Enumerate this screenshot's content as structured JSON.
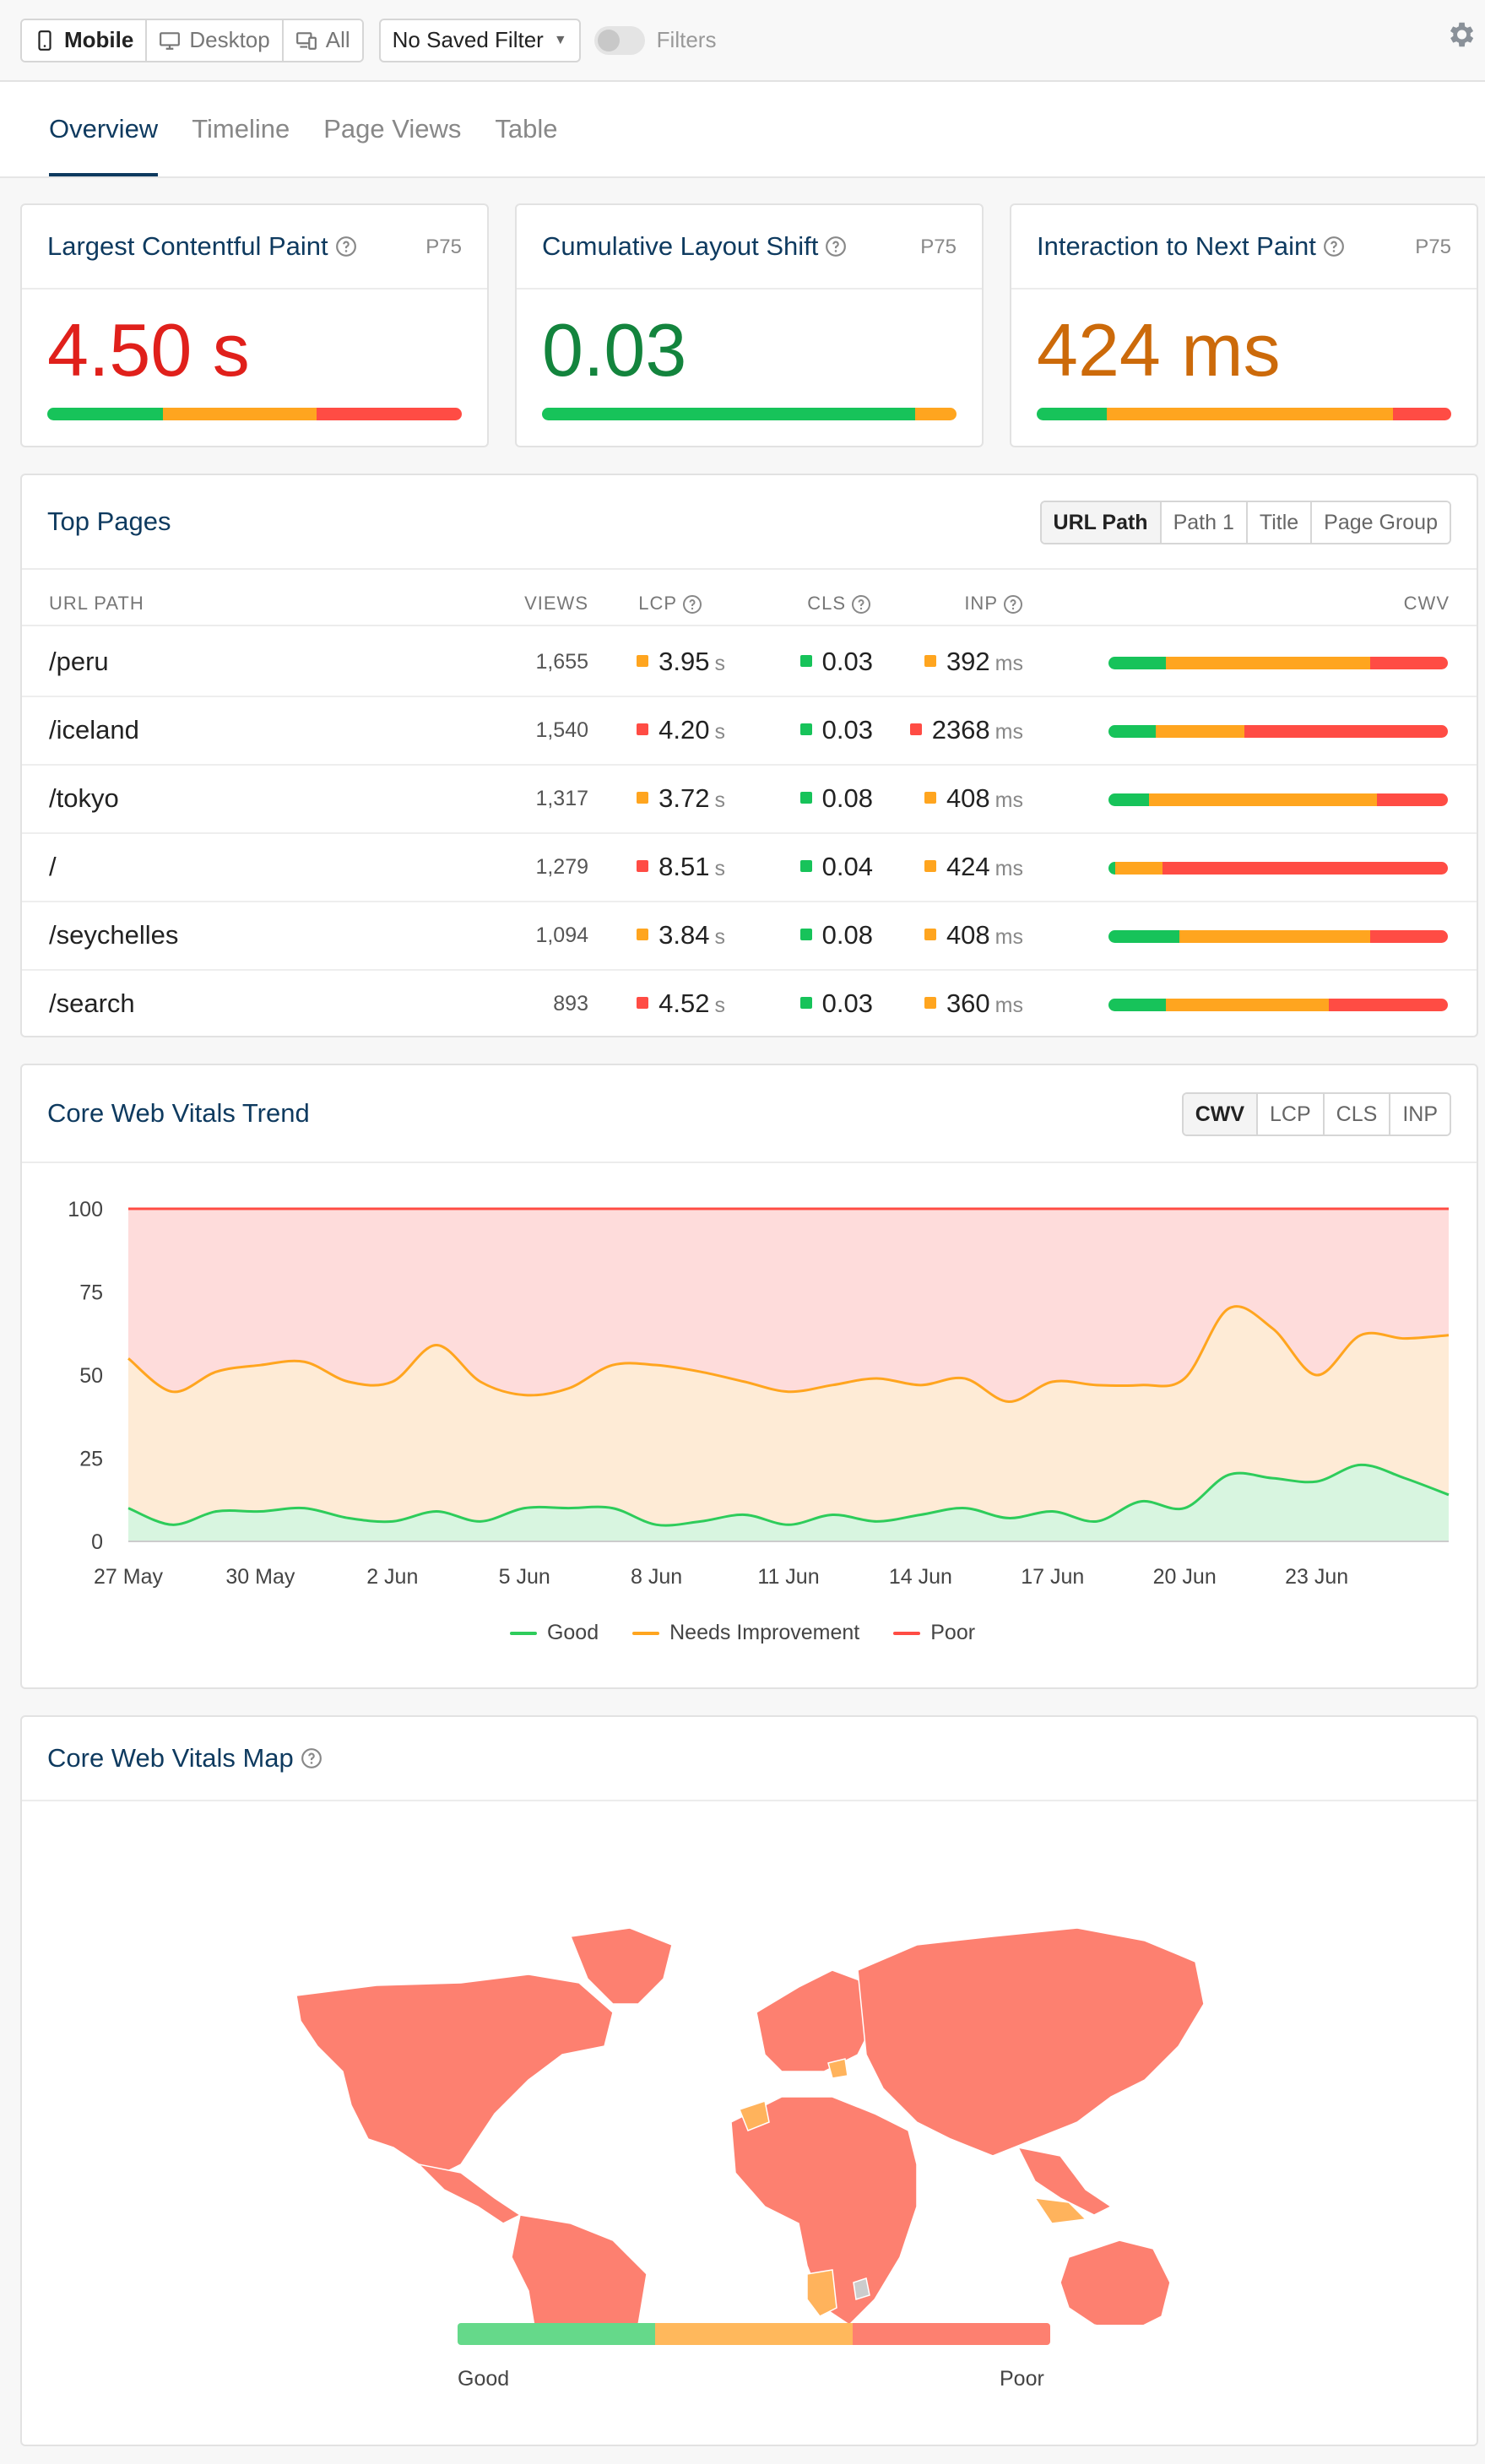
{
  "topbar": {
    "devices": [
      {
        "label": "Mobile",
        "active": true
      },
      {
        "label": "Desktop",
        "active": false
      },
      {
        "label": "All",
        "active": false
      }
    ],
    "saved_filter": "No Saved Filter",
    "filters_label": "Filters"
  },
  "tabs": [
    {
      "label": "Overview",
      "active": true
    },
    {
      "label": "Timeline",
      "active": false
    },
    {
      "label": "Page Views",
      "active": false
    },
    {
      "label": "Table",
      "active": false
    }
  ],
  "colors": {
    "good": "#17c35a",
    "ni": "#ffa51f",
    "poor": "#ff4c44",
    "title": "#0e3a5f"
  },
  "metrics": [
    {
      "title": "Largest Contentful Paint",
      "percentile": "P75",
      "value": "4.50 s",
      "value_color": "#e0201b",
      "dist": [
        0.28,
        0.37,
        0.35
      ]
    },
    {
      "title": "Cumulative Layout Shift",
      "percentile": "P75",
      "value": "0.03",
      "value_color": "#13843d",
      "dist": [
        0.9,
        0.1,
        0.0
      ]
    },
    {
      "title": "Interaction to Next Paint",
      "percentile": "P75",
      "value": "424 ms",
      "value_color": "#cc6a0a",
      "dist": [
        0.17,
        0.69,
        0.14
      ]
    }
  ],
  "top_pages": {
    "title": "Top Pages",
    "groupings": [
      {
        "label": "URL Path",
        "active": true
      },
      {
        "label": "Path 1",
        "active": false
      },
      {
        "label": "Title",
        "active": false
      },
      {
        "label": "Page Group",
        "active": false
      }
    ],
    "columns": {
      "path": "URL PATH",
      "views": "VIEWS",
      "lcp": "LCP",
      "cls": "CLS",
      "inp": "INP",
      "cwv": "CWV"
    },
    "rows": [
      {
        "path": "/peru",
        "views": "1,655",
        "lcp": "3.95",
        "lcp_unit": "s",
        "lcp_status": "ni",
        "cls": "0.03",
        "cls_status": "good",
        "inp": "392",
        "inp_unit": "ms",
        "inp_status": "ni",
        "dist": [
          0.17,
          0.6,
          0.23
        ]
      },
      {
        "path": "/iceland",
        "views": "1,540",
        "lcp": "4.20",
        "lcp_unit": "s",
        "lcp_status": "poor",
        "cls": "0.03",
        "cls_status": "good",
        "inp": "2368",
        "inp_unit": "ms",
        "inp_status": "poor",
        "dist": [
          0.14,
          0.26,
          0.6
        ]
      },
      {
        "path": "/tokyo",
        "views": "1,317",
        "lcp": "3.72",
        "lcp_unit": "s",
        "lcp_status": "ni",
        "cls": "0.08",
        "cls_status": "good",
        "inp": "408",
        "inp_unit": "ms",
        "inp_status": "ni",
        "dist": [
          0.12,
          0.67,
          0.21
        ]
      },
      {
        "path": "/",
        "views": "1,279",
        "lcp": "8.51",
        "lcp_unit": "s",
        "lcp_status": "poor",
        "cls": "0.04",
        "cls_status": "good",
        "inp": "424",
        "inp_unit": "ms",
        "inp_status": "ni",
        "dist": [
          0.02,
          0.14,
          0.84
        ]
      },
      {
        "path": "/seychelles",
        "views": "1,094",
        "lcp": "3.84",
        "lcp_unit": "s",
        "lcp_status": "ni",
        "cls": "0.08",
        "cls_status": "good",
        "inp": "408",
        "inp_unit": "ms",
        "inp_status": "ni",
        "dist": [
          0.21,
          0.56,
          0.23
        ]
      },
      {
        "path": "/search",
        "views": "893",
        "lcp": "4.52",
        "lcp_unit": "s",
        "lcp_status": "poor",
        "cls": "0.03",
        "cls_status": "good",
        "inp": "360",
        "inp_unit": "ms",
        "inp_status": "ni",
        "dist": [
          0.17,
          0.48,
          0.35
        ]
      }
    ]
  },
  "trend": {
    "title": "Core Web Vitals Trend",
    "metric_tabs": [
      {
        "label": "CWV",
        "active": true
      },
      {
        "label": "LCP",
        "active": false
      },
      {
        "label": "CLS",
        "active": false
      },
      {
        "label": "INP",
        "active": false
      }
    ]
  },
  "chart_data": {
    "type": "area",
    "x": [
      "27 May",
      "28 May",
      "29 May",
      "30 May",
      "31 May",
      "1 Jun",
      "2 Jun",
      "3 Jun",
      "4 Jun",
      "5 Jun",
      "6 Jun",
      "7 Jun",
      "8 Jun",
      "9 Jun",
      "10 Jun",
      "11 Jun",
      "12 Jun",
      "13 Jun",
      "14 Jun",
      "15 Jun",
      "16 Jun",
      "17 Jun",
      "18 Jun",
      "19 Jun",
      "20 Jun",
      "21 Jun",
      "22 Jun",
      "23 Jun",
      "24 Jun",
      "25 Jun",
      "26 Jun"
    ],
    "xticks": [
      "27 May",
      "30 May",
      "2 Jun",
      "5 Jun",
      "8 Jun",
      "11 Jun",
      "14 Jun",
      "17 Jun",
      "20 Jun",
      "23 Jun"
    ],
    "yticks": [
      0,
      25,
      50,
      75,
      100
    ],
    "ylim": [
      0,
      100
    ],
    "series": [
      {
        "name": "Good",
        "color": "#2ecc5b",
        "values": [
          10,
          5,
          9,
          9,
          10,
          7,
          6,
          9,
          6,
          10,
          10,
          10,
          5,
          6,
          8,
          5,
          8,
          6,
          8,
          10,
          7,
          9,
          6,
          12,
          10,
          20,
          19,
          18,
          23,
          19,
          14
        ]
      },
      {
        "name": "Needs Improvement",
        "color": "#ffa51f",
        "values": [
          55,
          45,
          51,
          53,
          54,
          48,
          48,
          59,
          48,
          44,
          46,
          53,
          53,
          51,
          48,
          45,
          47,
          49,
          47,
          49,
          42,
          48,
          47,
          47,
          49,
          70,
          64,
          50,
          62,
          61,
          62
        ]
      },
      {
        "name": "Poor",
        "color": "#ff4c44",
        "values": [
          100,
          100,
          100,
          100,
          100,
          100,
          100,
          100,
          100,
          100,
          100,
          100,
          100,
          100,
          100,
          100,
          100,
          100,
          100,
          100,
          100,
          100,
          100,
          100,
          100,
          100,
          100,
          100,
          100,
          100,
          100
        ]
      }
    ],
    "grid": true,
    "legend": "bottom"
  },
  "map": {
    "title": "Core Web Vitals Map",
    "scale_left": "Good",
    "scale_right": "Poor"
  }
}
